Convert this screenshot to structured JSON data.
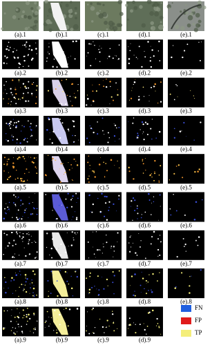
{
  "figure": {
    "panels": [
      [
        "(a).1",
        "(b).1",
        "(c).1",
        "(d).1",
        "(e).1"
      ],
      [
        "(a).2",
        "(b).2",
        "(c).2",
        "(d).2",
        "(e).2"
      ],
      [
        "(a).3",
        "(b).3",
        "(c).3",
        "(d).3",
        "(e).3"
      ],
      [
        "(a).4",
        "(b).4",
        "(c).4",
        "(d).4",
        "(e).4"
      ],
      [
        "(a).5",
        "(b).5",
        "(c).5",
        "(d).5",
        "(e).5"
      ],
      [
        "(a).6",
        "(b).6",
        "(c).6",
        "(d).6",
        "(e).6"
      ],
      [
        "(a).7",
        "(b).7",
        "(c).7",
        "(d).7",
        "(e).7"
      ],
      [
        "(a).8",
        "(b).8",
        "(c).8",
        "(d).8",
        "(e).8"
      ],
      [
        "(a).9",
        "(b).9",
        "(c).9",
        "(d).9"
      ]
    ],
    "legend": [
      {
        "label": "FN",
        "color": "#1f5fe0"
      },
      {
        "label": "FP",
        "color": "#e01b1b"
      },
      {
        "label": "TP",
        "color": "#f4ee7a"
      }
    ]
  }
}
